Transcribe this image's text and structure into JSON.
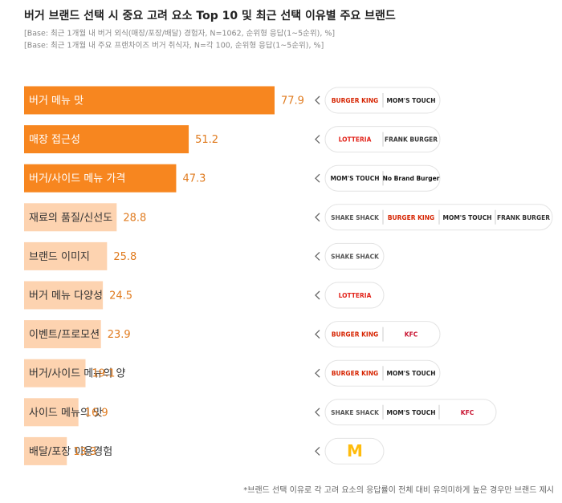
{
  "chart_data": {
    "type": "bar",
    "orientation": "horizontal",
    "title": "버거 브랜드 선택 시 중요 고려 요소 Top 10 및 최근 선택 이유별 주요 브랜드",
    "subtitles": [
      "[Base: 최근 1개월 내 버거 외식(매장/포장/배달) 경험자, N=1062, 순위형 응답(1~5순위), %]",
      "[Base: 최근 1개월 내 주요 프랜차이즈 버거 취식자, N=각 100, 순위형 응답(1~5순위), %]"
    ],
    "categories": [
      "버거 메뉴 맛",
      "매장 접근성",
      "버거/사이드 메뉴 가격",
      "재료의 품질/신선도",
      "브랜드 이미지",
      "버거 메뉴 다양성",
      "이벤트/프로모션",
      "버거/사이드 메뉴의 양",
      "사이드 메뉴의 맛",
      "배달/포장 이용경험"
    ],
    "values": [
      77.9,
      51.2,
      47.3,
      28.8,
      25.8,
      24.5,
      23.9,
      19.1,
      16.9,
      13.3
    ],
    "colors": [
      "#f7861f",
      "#f7861f",
      "#f7861f",
      "#fdd3b0",
      "#fdd3b0",
      "#fdd3b0",
      "#fdd3b0",
      "#fdd3b0",
      "#fdd3b0",
      "#fdd3b0"
    ],
    "value_label_color": "#e07b1f",
    "brands": [
      {
        "name": "BURGER KING",
        "color": "#d62300"
      },
      {
        "name": "MOM'S TOUCH",
        "color": "#222222"
      },
      {
        "name": "LOTTERIA",
        "color": "#e2231a"
      },
      {
        "name": "FRANK BURGER",
        "color": "#333333"
      },
      {
        "name": "No Brand Burger",
        "color": "#111111"
      },
      {
        "name": "SHAKE SHACK",
        "color": "#555555"
      },
      {
        "name": "KFC",
        "color": "#c8102e"
      },
      {
        "name": "M",
        "color": "#ffbc0d"
      }
    ],
    "row_brands": [
      [
        0,
        1
      ],
      [
        2,
        3
      ],
      [
        1,
        4
      ],
      [
        5,
        0,
        1,
        3
      ],
      [
        5
      ],
      [
        2
      ],
      [
        0,
        6
      ],
      [
        0,
        1
      ],
      [
        5,
        1,
        6
      ],
      [
        7
      ]
    ],
    "footnote": "*브랜드 선택 이유로 각 고려 요소의 응답률이 전체 대비 유의미하게 높은 경우만 브랜드 제시"
  }
}
